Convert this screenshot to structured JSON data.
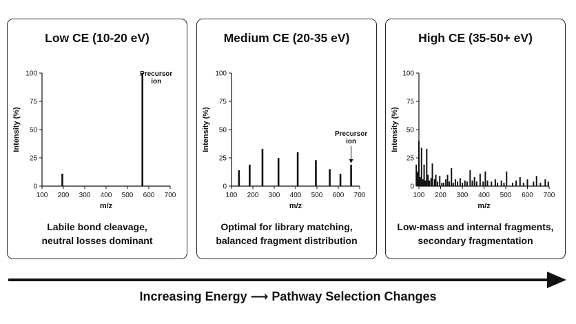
{
  "colors": {
    "ink": "#111111",
    "border": "#2a2a2a",
    "background": "#ffffff"
  },
  "footer": {
    "label": "Increasing Energy ⟶ Pathway Selection Changes"
  },
  "panels": [
    {
      "title": "Low CE (10-20 eV)",
      "caption": [
        "Labile bond cleavage,",
        "neutral losses dominant"
      ]
    },
    {
      "title": "Medium CE (20-35 eV)",
      "caption": [
        "Optimal for library matching,",
        "balanced fragment distribution"
      ]
    },
    {
      "title": "High CE (35-50+ eV)",
      "caption": [
        "Low-mass and internal fragments,",
        "secondary fragmentation"
      ]
    }
  ],
  "chart_data": [
    {
      "type": "bar",
      "title": "Low CE (10-20 eV)",
      "xlabel": "m/z",
      "ylabel": "Intensity (%)",
      "xlim": [
        100,
        700
      ],
      "ylim": [
        0,
        100
      ],
      "xticks": [
        100,
        200,
        300,
        400,
        500,
        600,
        700
      ],
      "yticks": [
        0,
        25,
        50,
        75,
        100
      ],
      "grid": false,
      "peaks": {
        "x": [
          195,
          570
        ],
        "y": [
          11,
          100
        ]
      },
      "annotations": [
        {
          "text": "Precursor ion",
          "x": 570,
          "y": 100,
          "arrow": false
        }
      ]
    },
    {
      "type": "bar",
      "title": "Medium CE (20-35 eV)",
      "xlabel": "m/z",
      "ylabel": "Intensity (%)",
      "xlim": [
        100,
        700
      ],
      "ylim": [
        0,
        100
      ],
      "xticks": [
        100,
        200,
        300,
        400,
        500,
        600,
        700
      ],
      "yticks": [
        0,
        25,
        50,
        75,
        100
      ],
      "grid": false,
      "peaks": {
        "x": [
          135,
          185,
          245,
          320,
          410,
          495,
          560,
          610,
          660
        ],
        "y": [
          14,
          19,
          33,
          25,
          30,
          23,
          15,
          11,
          19
        ]
      },
      "annotations": [
        {
          "text": "Precursor ion",
          "x": 660,
          "y": 19,
          "arrow": true
        }
      ]
    },
    {
      "type": "bar",
      "title": "High CE (35-50+ eV)",
      "xlabel": "m/z",
      "ylabel": "Intensity (%)",
      "xlim": [
        100,
        700
      ],
      "ylim": [
        0,
        100
      ],
      "xticks": [
        100,
        200,
        300,
        400,
        500,
        600,
        700
      ],
      "yticks": [
        0,
        25,
        50,
        75,
        100
      ],
      "grid": false,
      "peaks": {
        "x": [
          88,
          92,
          96,
          100,
          106,
          112,
          118,
          124,
          130,
          136,
          142,
          148,
          156,
          162,
          172,
          178,
          186,
          196,
          206,
          214,
          224,
          232,
          240,
          250,
          258,
          268,
          278,
          290,
          300,
          312,
          322,
          336,
          346,
          356,
          366,
          382,
          396,
          406,
          416,
          434,
          452,
          462,
          480,
          492,
          504,
          532,
          548,
          566,
          582,
          600,
          628,
          642,
          660,
          682,
          696
        ],
        "y": [
          19,
          12,
          13,
          40,
          8,
          34,
          6,
          19,
          5,
          33,
          10,
          5,
          7,
          20,
          6,
          10,
          4,
          9,
          3,
          3,
          6,
          10,
          4,
          16,
          3,
          6,
          4,
          7,
          3,
          5,
          4,
          14,
          5,
          8,
          4,
          11,
          4,
          13,
          5,
          4,
          6,
          3,
          5,
          3,
          13,
          3,
          5,
          8,
          3,
          6,
          4,
          9,
          3,
          6,
          4
        ]
      },
      "annotations": []
    }
  ]
}
